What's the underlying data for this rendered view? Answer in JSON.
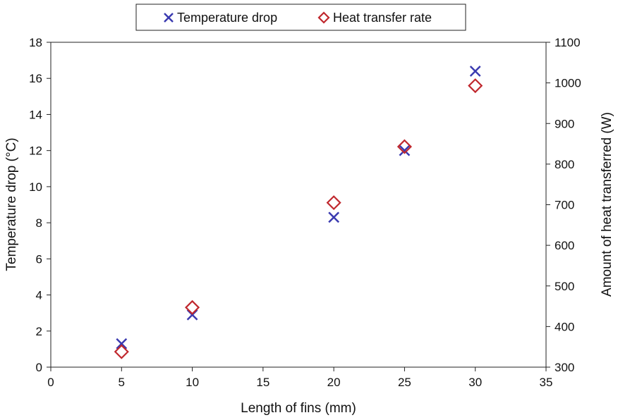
{
  "chart_data": {
    "type": "scatter",
    "x": [
      5,
      10,
      20,
      25,
      30
    ],
    "series": [
      {
        "name": "Temperature drop",
        "axis": "left",
        "marker": "x",
        "color": "#3a3ab0",
        "values": [
          1.3,
          2.9,
          8.3,
          12.0,
          16.4
        ]
      },
      {
        "name": "Heat transfer rate",
        "axis": "right",
        "marker": "diamond",
        "color": "#c0272d",
        "values": [
          338,
          447,
          705,
          843,
          993
        ]
      }
    ],
    "xlabel": "Length of fins (mm)",
    "ylabel": "Temperature drop (°C)",
    "y2label": "Amount of heat transferred (W)",
    "xlim": [
      0,
      35
    ],
    "ylim": [
      0,
      18
    ],
    "y2lim": [
      300,
      1100
    ],
    "xticks": [
      0,
      5,
      10,
      15,
      20,
      25,
      30,
      35
    ],
    "yticks": [
      0,
      2,
      4,
      6,
      8,
      10,
      12,
      14,
      16,
      18
    ],
    "y2ticks": [
      300,
      400,
      500,
      600,
      700,
      800,
      900,
      1000,
      1100
    ],
    "grid": false,
    "legend_position": "top-center"
  }
}
